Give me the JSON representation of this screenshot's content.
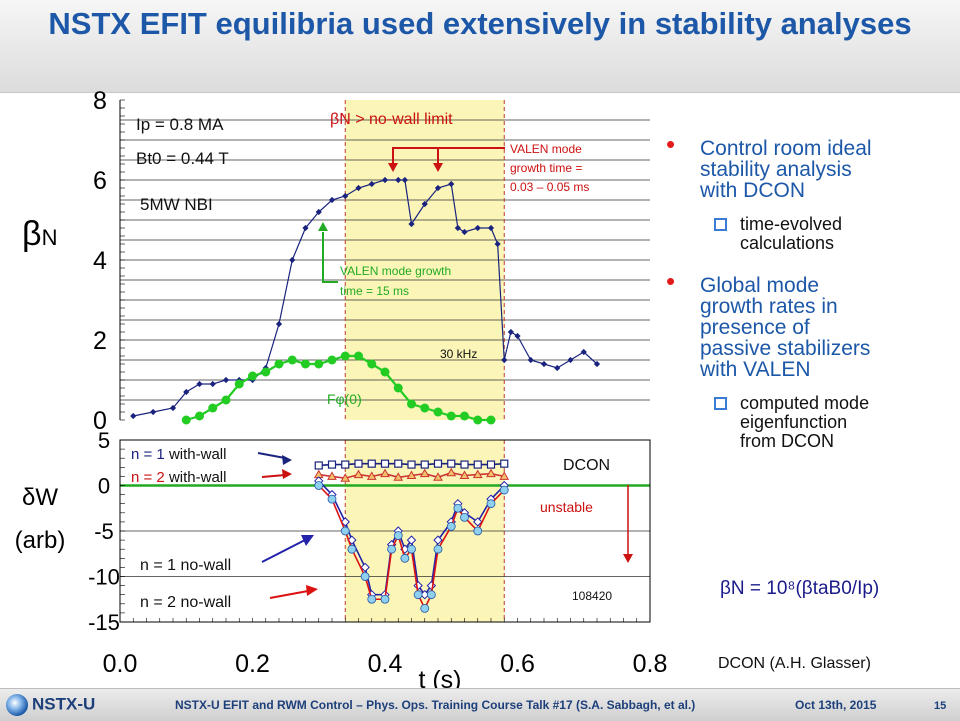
{
  "title": "NSTX EFIT equilibria used extensively in stability analyses",
  "chart_data": [
    {
      "type": "line",
      "ylabel": "βN",
      "ylim": [
        0,
        8
      ],
      "yticks": [
        "0",
        "2",
        "4",
        "6",
        "8"
      ],
      "xlim": [
        0.0,
        0.8
      ],
      "grid": true,
      "shaded_region": {
        "x": [
          0.34,
          0.58
        ],
        "label": "βN > no-wall limit",
        "color": "#fbf6b8"
      },
      "annotations": {
        "ip": "Ip = 0.8 MA",
        "bt": "Bt0 = 0.44 T",
        "nbi": "5MW NBI",
        "valen_red": [
          "VALEN mode",
          "growth time =",
          "0.03 – 0.05 ms"
        ],
        "valen_green": [
          "VALEN mode growth",
          "time = 15 ms"
        ],
        "khz": "30 kHz",
        "fphi": "Fφ(0)"
      },
      "series": [
        {
          "color": "#1a237e",
          "marker": "diamond",
          "x": [
            0.02,
            0.05,
            0.08,
            0.1,
            0.12,
            0.14,
            0.16,
            0.18,
            0.2,
            0.22,
            0.24,
            0.26,
            0.28,
            0.3,
            0.32,
            0.34,
            0.36,
            0.38,
            0.4,
            0.42,
            0.43,
            0.44,
            0.46,
            0.48,
            0.5,
            0.51,
            0.52,
            0.54,
            0.56,
            0.57,
            0.58,
            0.59,
            0.6,
            0.62,
            0.64,
            0.66,
            0.68,
            0.7,
            0.72
          ],
          "y": [
            0.1,
            0.2,
            0.3,
            0.7,
            0.9,
            0.9,
            1.0,
            1.0,
            1.0,
            1.3,
            2.4,
            4.0,
            4.8,
            5.2,
            5.5,
            5.6,
            5.8,
            5.9,
            6.0,
            6.0,
            6.0,
            4.9,
            5.4,
            5.8,
            5.9,
            4.8,
            4.7,
            4.8,
            4.8,
            4.4,
            1.5,
            2.2,
            2.1,
            1.5,
            1.4,
            1.3,
            1.5,
            1.7,
            1.4
          ]
        },
        {
          "color": "#22cc22",
          "marker": "circle",
          "x": [
            0.1,
            0.12,
            0.14,
            0.16,
            0.18,
            0.2,
            0.22,
            0.24,
            0.26,
            0.28,
            0.3,
            0.32,
            0.34,
            0.36,
            0.38,
            0.4,
            0.42,
            0.44,
            0.46,
            0.48,
            0.5,
            0.52,
            0.54,
            0.56
          ],
          "y": [
            0.0,
            0.1,
            0.3,
            0.5,
            0.9,
            1.1,
            1.2,
            1.4,
            1.5,
            1.4,
            1.4,
            1.5,
            1.6,
            1.6,
            1.4,
            1.2,
            0.8,
            0.4,
            0.3,
            0.2,
            0.1,
            0.1,
            0.0,
            0.0
          ]
        }
      ]
    },
    {
      "type": "line",
      "ylabel": [
        "δW",
        "(arb)"
      ],
      "ylim": [
        -15,
        5
      ],
      "yticks": [
        "5",
        "0",
        "-5",
        "-10",
        "-15"
      ],
      "xlim": [
        0.0,
        0.8
      ],
      "xticks": [
        "0.0",
        "0.2",
        "0.4",
        "0.6",
        "0.8"
      ],
      "xlabel": "t (s)",
      "zero_line_color": "#22aa22",
      "annotations": {
        "dcon": "DCON",
        "unstable": "unstable",
        "shot": "108420",
        "n1_wall_n": "n = 1",
        "n1_wall_t": " with-wall",
        "n2_wall_n": "n = 2",
        "n2_wall_t": " with-wall",
        "n1_nowall": "n = 1 no-wall",
        "n2_nowall": "n = 2 no-wall"
      },
      "series": [
        {
          "color": "#1a237e",
          "marker": "square",
          "x": [
            0.3,
            0.32,
            0.34,
            0.36,
            0.38,
            0.4,
            0.42,
            0.44,
            0.46,
            0.48,
            0.5,
            0.52,
            0.54,
            0.56,
            0.58
          ],
          "y": [
            2.2,
            2.3,
            2.3,
            2.4,
            2.4,
            2.4,
            2.4,
            2.3,
            2.3,
            2.4,
            2.4,
            2.3,
            2.3,
            2.3,
            2.4
          ]
        },
        {
          "color": "#cc3333",
          "marker": "triangle",
          "x": [
            0.3,
            0.32,
            0.34,
            0.36,
            0.38,
            0.4,
            0.42,
            0.44,
            0.46,
            0.48,
            0.5,
            0.52,
            0.54,
            0.56,
            0.58
          ],
          "y": [
            1.2,
            1.0,
            0.8,
            1.2,
            1.0,
            1.3,
            0.9,
            1.1,
            1.3,
            0.9,
            1.4,
            1.1,
            1.2,
            1.3,
            1.0
          ]
        },
        {
          "color": "#2222aa",
          "marker": "diamond",
          "x": [
            0.3,
            0.32,
            0.34,
            0.35,
            0.37,
            0.38,
            0.4,
            0.41,
            0.42,
            0.43,
            0.44,
            0.45,
            0.46,
            0.47,
            0.48,
            0.5,
            0.51,
            0.52,
            0.54,
            0.56,
            0.58
          ],
          "y": [
            0.5,
            -1.0,
            -4.0,
            -6.0,
            -9.0,
            -12.0,
            -12.0,
            -6.5,
            -5.0,
            -7.0,
            -6.0,
            -11.0,
            -12.0,
            -11.0,
            -6.0,
            -4.0,
            -2.0,
            -3.0,
            -4.0,
            -1.5,
            0.0
          ]
        },
        {
          "color": "#dd1111",
          "marker": "circle",
          "x": [
            0.3,
            0.32,
            0.34,
            0.35,
            0.37,
            0.38,
            0.4,
            0.41,
            0.42,
            0.43,
            0.44,
            0.45,
            0.46,
            0.47,
            0.48,
            0.5,
            0.51,
            0.52,
            0.54,
            0.56,
            0.58
          ],
          "y": [
            0.0,
            -1.5,
            -5.0,
            -7.0,
            -10.0,
            -12.5,
            -12.5,
            -7.0,
            -5.5,
            -8.0,
            -7.0,
            -12.0,
            -13.5,
            -12.0,
            -7.0,
            -4.5,
            -2.5,
            -3.5,
            -5.0,
            -2.0,
            -0.5
          ]
        }
      ]
    }
  ],
  "bullets": {
    "b1": [
      "Control room ideal",
      "stability analysis",
      "with DCON"
    ],
    "b1_sub": [
      "time-evolved",
      "calculations"
    ],
    "b2": [
      "Global mode",
      "growth rates in",
      "presence of",
      "passive stabilizers",
      "with VALEN"
    ],
    "b2_sub": [
      "computed mode",
      "eigenfunction",
      "from DCON"
    ]
  },
  "formula": "βN = 10⁸(βtaB0/Ip)",
  "credit": "DCON (A.H. Glasser)",
  "footer": {
    "logo": "NSTX-U",
    "text": "NSTX-U EFIT and RWM Control – Phys. Ops. Training Course Talk #17 (S.A. Sabbagh, et al.)",
    "date": "Oct 13th, 2015",
    "page": "15"
  },
  "colors": {
    "title": "#1d58a8",
    "bullet": "#e31b1b",
    "shade": "#fbf6b8"
  }
}
